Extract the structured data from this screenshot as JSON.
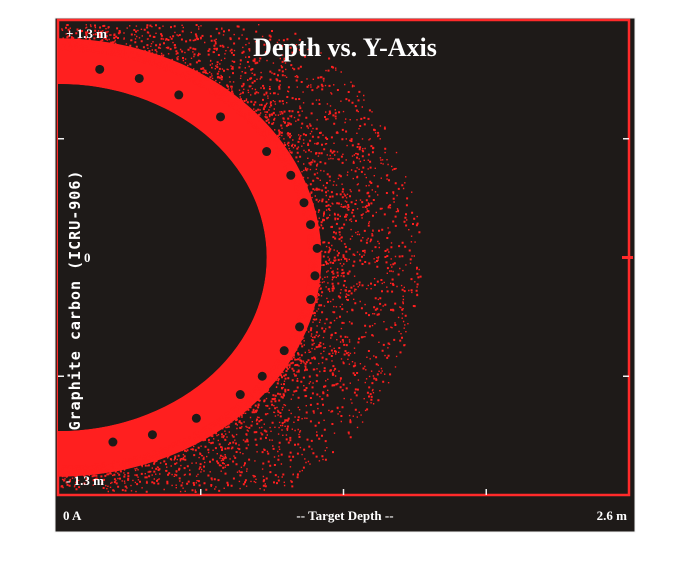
{
  "chart_data": {
    "type": "scatter",
    "title": "Depth vs. Y-Axis",
    "xlabel": "-- Target Depth --",
    "ylabel": "Graphite carbon (ICRU-906)",
    "x_unit": "m",
    "y_unit": "m",
    "xlim": [
      0,
      2.6
    ],
    "ylim": [
      -1.3,
      1.3
    ],
    "x_tick_labels": [
      "0 A",
      "2.6 m"
    ],
    "y_tick_labels": [
      "+ 1.3 m",
      "0",
      "- 1.3 m"
    ],
    "grid": false,
    "colors": {
      "background": "#1e1a18",
      "frame": "#ff2a2a",
      "particles": "#ff1f1f",
      "text": "#ffffff"
    },
    "series": [
      {
        "region": "dense-core-shell",
        "inner_radius": 0.95,
        "outer_radius": 1.2
      },
      {
        "region": "diffuse-halo",
        "inner_radius": 1.2,
        "outer_radius": 1.65
      }
    ],
    "markers": {
      "kind": "black-dots",
      "points": [
        [
          0.19,
          1.03
        ],
        [
          0.37,
          0.98
        ],
        [
          0.55,
          0.89
        ],
        [
          0.74,
          0.77
        ],
        [
          0.95,
          0.58
        ],
        [
          1.06,
          0.45
        ],
        [
          1.12,
          0.3
        ],
        [
          1.15,
          0.18
        ],
        [
          1.18,
          0.05
        ],
        [
          1.17,
          -0.1
        ],
        [
          1.15,
          -0.23
        ],
        [
          1.1,
          -0.38
        ],
        [
          1.03,
          -0.51
        ],
        [
          0.93,
          -0.65
        ],
        [
          0.83,
          -0.75
        ],
        [
          0.63,
          -0.88
        ],
        [
          0.43,
          -0.97
        ],
        [
          0.25,
          -1.01
        ]
      ]
    }
  }
}
